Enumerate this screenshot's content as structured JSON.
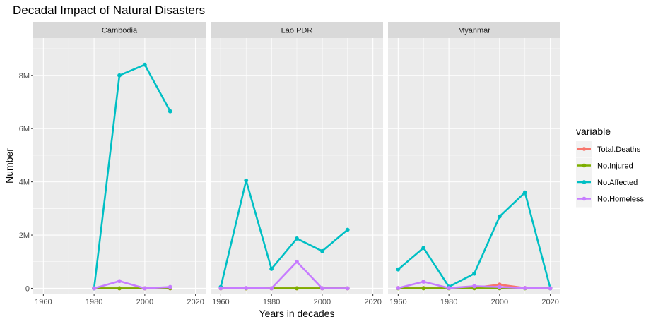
{
  "chart_data": {
    "type": "line",
    "title": "Decadal Impact of Natural Disasters",
    "xlabel": "Years in decades",
    "ylabel": "Number",
    "xlim": [
      1956,
      2024
    ],
    "ylim": [
      -200000,
      9400000
    ],
    "x_ticks": [
      1960,
      1980,
      2000,
      2020
    ],
    "x_tick_labels": [
      "1960",
      "1980",
      "2000",
      "2020"
    ],
    "y_ticks": [
      0,
      2000000,
      4000000,
      6000000,
      8000000
    ],
    "y_tick_labels": [
      "0",
      "2M",
      "4M",
      "6M",
      "8M"
    ],
    "grid": true,
    "legend": {
      "title": "variable",
      "position": "right",
      "entries": [
        {
          "name": "Total.Deaths",
          "color": "#F8766D"
        },
        {
          "name": "No.Injured",
          "color": "#7CAE00"
        },
        {
          "name": "No.Affected",
          "color": "#00BFC4"
        },
        {
          "name": "No.Homeless",
          "color": "#C77CFF"
        }
      ]
    },
    "panels": [
      {
        "label": "Cambodia",
        "series": [
          {
            "name": "Total.Deaths",
            "x": [
              1980,
              1990,
              2000,
              2010
            ],
            "values": [
              0,
              0,
              0,
              0
            ]
          },
          {
            "name": "No.Injured",
            "x": [
              1980,
              1990,
              2000,
              2010
            ],
            "values": [
              0,
              0,
              0,
              0
            ]
          },
          {
            "name": "No.Affected",
            "x": [
              1980,
              1990,
              2000,
              2010
            ],
            "values": [
              0,
              8000000,
              8400000,
              6650000
            ]
          },
          {
            "name": "No.Homeless",
            "x": [
              1980,
              1990,
              2000,
              2010
            ],
            "values": [
              0,
              270000,
              0,
              50000
            ]
          }
        ]
      },
      {
        "label": "Lao PDR",
        "series": [
          {
            "name": "Total.Deaths",
            "x": [
              1960,
              1970,
              1980,
              1990,
              2000,
              2010
            ],
            "values": [
              0,
              0,
              0,
              0,
              0,
              0
            ]
          },
          {
            "name": "No.Injured",
            "x": [
              1960,
              1970,
              1980,
              1990,
              2000,
              2010
            ],
            "values": [
              0,
              0,
              0,
              0,
              0,
              0
            ]
          },
          {
            "name": "No.Affected",
            "x": [
              1960,
              1970,
              1980,
              1990,
              2000,
              2010
            ],
            "values": [
              50000,
              4050000,
              730000,
              1870000,
              1400000,
              2200000
            ]
          },
          {
            "name": "No.Homeless",
            "x": [
              1960,
              1970,
              1980,
              1990,
              2000,
              2010
            ],
            "values": [
              0,
              10000,
              0,
              1000000,
              0,
              0
            ]
          }
        ]
      },
      {
        "label": "Myanmar",
        "series": [
          {
            "name": "Total.Deaths",
            "x": [
              1960,
              1970,
              1980,
              1990,
              2000,
              2010,
              2020
            ],
            "values": [
              10000,
              10000,
              10000,
              20000,
              140000,
              10000,
              0
            ]
          },
          {
            "name": "No.Injured",
            "x": [
              1960,
              1970,
              1980,
              1990,
              2000,
              2010,
              2020
            ],
            "values": [
              0,
              0,
              0,
              0,
              0,
              0,
              0
            ]
          },
          {
            "name": "No.Affected",
            "x": [
              1960,
              1970,
              1980,
              1990,
              2000,
              2010,
              2020
            ],
            "values": [
              710000,
              1520000,
              60000,
              550000,
              2700000,
              3600000,
              0
            ]
          },
          {
            "name": "No.Homeless",
            "x": [
              1960,
              1970,
              1980,
              1990,
              2000,
              2010,
              2020
            ],
            "values": [
              10000,
              250000,
              10000,
              80000,
              50000,
              10000,
              0
            ]
          }
        ]
      }
    ]
  }
}
